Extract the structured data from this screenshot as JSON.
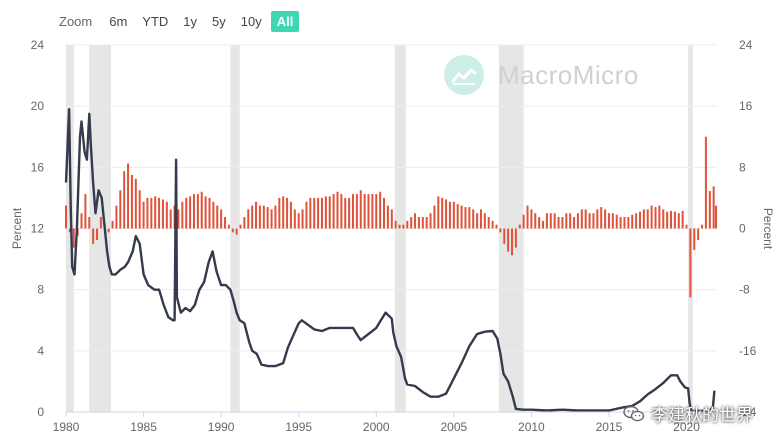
{
  "zoom": {
    "label": "Zoom",
    "buttons": [
      "6m",
      "YTD",
      "1y",
      "5y",
      "10y",
      "All"
    ],
    "active": "All"
  },
  "watermark": {
    "brand": "MacroMicro",
    "icon": "line-chart-icon"
  },
  "credit": {
    "text": "李建秋的世界",
    "icon": "wechat-icon"
  },
  "colors": {
    "rate_line": "#353a4d",
    "bars": "#e0533a",
    "recession": "#e6e6e6",
    "accent": "#3fd6b2"
  },
  "chart_data": {
    "type": "line+bar",
    "x_range": [
      1980,
      2021.9
    ],
    "x_ticks": [
      1980,
      1985,
      1990,
      1995,
      2000,
      2005,
      2010,
      2015,
      2020
    ],
    "left_axis": {
      "label": "Percent",
      "range": [
        0,
        24
      ],
      "ticks": [
        0,
        4,
        8,
        12,
        16,
        20,
        24
      ]
    },
    "right_axis": {
      "label": "Percent",
      "range": [
        -24,
        24
      ],
      "ticks": [
        -24,
        -16,
        -8,
        0,
        8,
        16,
        24
      ]
    },
    "recessions": [
      [
        1980.0,
        1980.5
      ],
      [
        1981.5,
        1982.9
      ],
      [
        1990.6,
        1991.2
      ],
      [
        2001.2,
        2001.9
      ],
      [
        2007.9,
        2009.5
      ],
      [
        2020.1,
        2020.4
      ]
    ],
    "series": [
      {
        "axis": "left",
        "kind": "line",
        "points": [
          [
            1980.0,
            15.0
          ],
          [
            1980.1,
            17.5
          ],
          [
            1980.2,
            19.8
          ],
          [
            1980.3,
            13.5
          ],
          [
            1980.4,
            9.5
          ],
          [
            1980.55,
            9.0
          ],
          [
            1980.7,
            12.0
          ],
          [
            1980.9,
            18.0
          ],
          [
            1981.0,
            19.0
          ],
          [
            1981.2,
            17.0
          ],
          [
            1981.35,
            16.5
          ],
          [
            1981.5,
            19.5
          ],
          [
            1981.6,
            17.5
          ],
          [
            1981.75,
            15.0
          ],
          [
            1981.9,
            13.0
          ],
          [
            1982.1,
            14.5
          ],
          [
            1982.3,
            14.0
          ],
          [
            1982.5,
            12.0
          ],
          [
            1982.65,
            10.5
          ],
          [
            1982.8,
            9.5
          ],
          [
            1982.95,
            9.0
          ],
          [
            1983.2,
            9.0
          ],
          [
            1983.5,
            9.3
          ],
          [
            1983.8,
            9.5
          ],
          [
            1984.0,
            9.8
          ],
          [
            1984.3,
            10.5
          ],
          [
            1984.5,
            11.5
          ],
          [
            1984.75,
            11.0
          ],
          [
            1985.0,
            9.0
          ],
          [
            1985.3,
            8.3
          ],
          [
            1985.7,
            8.0
          ],
          [
            1986.0,
            8.0
          ],
          [
            1986.3,
            7.0
          ],
          [
            1986.6,
            6.2
          ],
          [
            1986.9,
            6.0
          ],
          [
            1987.0,
            6.0
          ],
          [
            1987.1,
            16.5
          ],
          [
            1987.15,
            7.5
          ],
          [
            1987.4,
            6.5
          ],
          [
            1987.7,
            6.8
          ],
          [
            1988.0,
            6.6
          ],
          [
            1988.3,
            7.0
          ],
          [
            1988.6,
            8.0
          ],
          [
            1988.9,
            8.5
          ],
          [
            1989.2,
            9.8
          ],
          [
            1989.45,
            10.5
          ],
          [
            1989.7,
            9.2
          ],
          [
            1990.0,
            8.3
          ],
          [
            1990.3,
            8.3
          ],
          [
            1990.6,
            8.0
          ],
          [
            1990.8,
            7.3
          ],
          [
            1991.0,
            6.5
          ],
          [
            1991.2,
            6.0
          ],
          [
            1991.5,
            5.8
          ],
          [
            1991.8,
            4.6
          ],
          [
            1992.0,
            4.0
          ],
          [
            1992.3,
            3.8
          ],
          [
            1992.6,
            3.1
          ],
          [
            1993.0,
            3.0
          ],
          [
            1993.5,
            3.0
          ],
          [
            1994.0,
            3.2
          ],
          [
            1994.3,
            4.2
          ],
          [
            1994.6,
            4.9
          ],
          [
            1995.0,
            5.8
          ],
          [
            1995.2,
            6.0
          ],
          [
            1995.6,
            5.7
          ],
          [
            1996.0,
            5.4
          ],
          [
            1996.5,
            5.3
          ],
          [
            1997.0,
            5.5
          ],
          [
            1997.5,
            5.5
          ],
          [
            1998.0,
            5.5
          ],
          [
            1998.5,
            5.5
          ],
          [
            1998.8,
            5.0
          ],
          [
            1999.0,
            4.7
          ],
          [
            1999.5,
            5.1
          ],
          [
            2000.0,
            5.5
          ],
          [
            2000.3,
            6.0
          ],
          [
            2000.6,
            6.5
          ],
          [
            2001.0,
            6.1
          ],
          [
            2001.1,
            5.2
          ],
          [
            2001.3,
            4.3
          ],
          [
            2001.6,
            3.6
          ],
          [
            2001.85,
            2.2
          ],
          [
            2002.0,
            1.8
          ],
          [
            2002.5,
            1.7
          ],
          [
            2003.0,
            1.3
          ],
          [
            2003.5,
            1.0
          ],
          [
            2004.0,
            1.0
          ],
          [
            2004.5,
            1.2
          ],
          [
            2004.9,
            2.0
          ],
          [
            2005.5,
            3.2
          ],
          [
            2006.0,
            4.3
          ],
          [
            2006.5,
            5.1
          ],
          [
            2007.0,
            5.25
          ],
          [
            2007.5,
            5.3
          ],
          [
            2007.8,
            4.8
          ],
          [
            2008.0,
            3.8
          ],
          [
            2008.2,
            2.5
          ],
          [
            2008.5,
            2.0
          ],
          [
            2008.8,
            1.0
          ],
          [
            2009.0,
            0.2
          ],
          [
            2009.5,
            0.15
          ],
          [
            2010.0,
            0.15
          ],
          [
            2011.0,
            0.1
          ],
          [
            2012.0,
            0.15
          ],
          [
            2013.0,
            0.1
          ],
          [
            2014.0,
            0.1
          ],
          [
            2015.0,
            0.1
          ],
          [
            2015.9,
            0.3
          ],
          [
            2016.5,
            0.4
          ],
          [
            2017.0,
            0.7
          ],
          [
            2017.5,
            1.15
          ],
          [
            2018.0,
            1.5
          ],
          [
            2018.5,
            1.9
          ],
          [
            2019.0,
            2.4
          ],
          [
            2019.4,
            2.4
          ],
          [
            2019.6,
            2.0
          ],
          [
            2019.9,
            1.6
          ],
          [
            2020.1,
            1.55
          ],
          [
            2020.2,
            0.6
          ],
          [
            2020.3,
            0.06
          ],
          [
            2021.0,
            0.08
          ],
          [
            2021.5,
            0.08
          ],
          [
            2021.7,
            0.3
          ],
          [
            2021.8,
            1.4
          ]
        ]
      },
      {
        "axis": "right",
        "kind": "bar",
        "points": [
          [
            1980.0,
            3.0
          ],
          [
            1980.25,
            -0.5
          ],
          [
            1980.5,
            -2.5
          ],
          [
            1980.75,
            -1.0
          ],
          [
            1981.0,
            2.0
          ],
          [
            1981.25,
            4.5
          ],
          [
            1981.5,
            1.5
          ],
          [
            1981.75,
            -2.0
          ],
          [
            1982.0,
            -1.5
          ],
          [
            1982.25,
            1.5
          ],
          [
            1982.5,
            0.5
          ],
          [
            1982.75,
            -0.5
          ],
          [
            1983.0,
            1.0
          ],
          [
            1983.25,
            3.0
          ],
          [
            1983.5,
            5.0
          ],
          [
            1983.75,
            7.5
          ],
          [
            1984.0,
            8.5
          ],
          [
            1984.25,
            7.0
          ],
          [
            1984.5,
            6.5
          ],
          [
            1984.75,
            5.0
          ],
          [
            1985.0,
            3.5
          ],
          [
            1985.25,
            4.0
          ],
          [
            1985.5,
            4.0
          ],
          [
            1985.75,
            4.2
          ],
          [
            1986.0,
            4.0
          ],
          [
            1986.25,
            3.8
          ],
          [
            1986.5,
            3.5
          ],
          [
            1986.75,
            2.5
          ],
          [
            1987.0,
            3.0
          ],
          [
            1987.25,
            2.5
          ],
          [
            1987.5,
            3.5
          ],
          [
            1987.75,
            4.0
          ],
          [
            1988.0,
            4.2
          ],
          [
            1988.25,
            4.5
          ],
          [
            1988.5,
            4.5
          ],
          [
            1988.75,
            4.8
          ],
          [
            1989.0,
            4.2
          ],
          [
            1989.25,
            4.0
          ],
          [
            1989.5,
            3.5
          ],
          [
            1989.75,
            3.0
          ],
          [
            1990.0,
            2.5
          ],
          [
            1990.25,
            1.5
          ],
          [
            1990.5,
            0.5
          ],
          [
            1990.75,
            -0.5
          ],
          [
            1991.0,
            -0.8
          ],
          [
            1991.25,
            0.5
          ],
          [
            1991.5,
            1.5
          ],
          [
            1991.75,
            2.5
          ],
          [
            1992.0,
            3.0
          ],
          [
            1992.25,
            3.5
          ],
          [
            1992.5,
            3.0
          ],
          [
            1992.75,
            3.0
          ],
          [
            1993.0,
            2.8
          ],
          [
            1993.25,
            2.5
          ],
          [
            1993.5,
            3.0
          ],
          [
            1993.75,
            4.0
          ],
          [
            1994.0,
            4.2
          ],
          [
            1994.25,
            4.0
          ],
          [
            1994.5,
            3.5
          ],
          [
            1994.75,
            2.5
          ],
          [
            1995.0,
            2.0
          ],
          [
            1995.25,
            2.5
          ],
          [
            1995.5,
            3.5
          ],
          [
            1995.75,
            4.0
          ],
          [
            1996.0,
            4.0
          ],
          [
            1996.25,
            4.0
          ],
          [
            1996.5,
            4.0
          ],
          [
            1996.75,
            4.2
          ],
          [
            1997.0,
            4.2
          ],
          [
            1997.25,
            4.5
          ],
          [
            1997.5,
            4.8
          ],
          [
            1997.75,
            4.5
          ],
          [
            1998.0,
            4.0
          ],
          [
            1998.25,
            4.0
          ],
          [
            1998.5,
            4.5
          ],
          [
            1998.75,
            4.5
          ],
          [
            1999.0,
            5.0
          ],
          [
            1999.25,
            4.5
          ],
          [
            1999.5,
            4.5
          ],
          [
            1999.75,
            4.5
          ],
          [
            2000.0,
            4.5
          ],
          [
            2000.25,
            4.8
          ],
          [
            2000.5,
            4.0
          ],
          [
            2000.75,
            3.0
          ],
          [
            2001.0,
            2.5
          ],
          [
            2001.25,
            1.0
          ],
          [
            2001.5,
            0.5
          ],
          [
            2001.75,
            0.5
          ],
          [
            2002.0,
            1.0
          ],
          [
            2002.25,
            1.5
          ],
          [
            2002.5,
            2.0
          ],
          [
            2002.75,
            1.5
          ],
          [
            2003.0,
            1.5
          ],
          [
            2003.25,
            1.5
          ],
          [
            2003.5,
            2.0
          ],
          [
            2003.75,
            3.0
          ],
          [
            2004.0,
            4.2
          ],
          [
            2004.25,
            4.0
          ],
          [
            2004.5,
            3.8
          ],
          [
            2004.75,
            3.5
          ],
          [
            2005.0,
            3.5
          ],
          [
            2005.25,
            3.2
          ],
          [
            2005.5,
            3.0
          ],
          [
            2005.75,
            2.8
          ],
          [
            2006.0,
            2.8
          ],
          [
            2006.25,
            2.5
          ],
          [
            2006.5,
            2.0
          ],
          [
            2006.75,
            2.5
          ],
          [
            2007.0,
            2.0
          ],
          [
            2007.25,
            1.5
          ],
          [
            2007.5,
            1.0
          ],
          [
            2007.75,
            0.5
          ],
          [
            2008.0,
            -0.5
          ],
          [
            2008.25,
            -2.0
          ],
          [
            2008.5,
            -3.0
          ],
          [
            2008.75,
            -3.5
          ],
          [
            2009.0,
            -2.5
          ],
          [
            2009.25,
            0.5
          ],
          [
            2009.5,
            1.8
          ],
          [
            2009.75,
            3.0
          ],
          [
            2010.0,
            2.5
          ],
          [
            2010.25,
            2.0
          ],
          [
            2010.5,
            1.5
          ],
          [
            2010.75,
            1.0
          ],
          [
            2011.0,
            2.0
          ],
          [
            2011.25,
            2.0
          ],
          [
            2011.5,
            2.0
          ],
          [
            2011.75,
            1.5
          ],
          [
            2012.0,
            1.5
          ],
          [
            2012.25,
            2.0
          ],
          [
            2012.5,
            2.0
          ],
          [
            2012.75,
            1.5
          ],
          [
            2013.0,
            2.0
          ],
          [
            2013.25,
            2.5
          ],
          [
            2013.5,
            2.5
          ],
          [
            2013.75,
            2.0
          ],
          [
            2014.0,
            2.0
          ],
          [
            2014.25,
            2.5
          ],
          [
            2014.5,
            2.8
          ],
          [
            2014.75,
            2.5
          ],
          [
            2015.0,
            2.0
          ],
          [
            2015.25,
            2.0
          ],
          [
            2015.5,
            1.8
          ],
          [
            2015.75,
            1.5
          ],
          [
            2016.0,
            1.5
          ],
          [
            2016.25,
            1.5
          ],
          [
            2016.5,
            1.8
          ],
          [
            2016.75,
            2.0
          ],
          [
            2017.0,
            2.2
          ],
          [
            2017.25,
            2.5
          ],
          [
            2017.5,
            2.5
          ],
          [
            2017.75,
            3.0
          ],
          [
            2018.0,
            2.8
          ],
          [
            2018.25,
            3.0
          ],
          [
            2018.5,
            2.5
          ],
          [
            2018.75,
            2.2
          ],
          [
            2019.0,
            2.3
          ],
          [
            2019.25,
            2.2
          ],
          [
            2019.5,
            2.0
          ],
          [
            2019.75,
            2.3
          ],
          [
            2020.0,
            0.5
          ],
          [
            2020.25,
            -9.0
          ],
          [
            2020.5,
            -2.8
          ],
          [
            2020.75,
            -1.5
          ],
          [
            2021.0,
            0.5
          ],
          [
            2021.25,
            12.0
          ],
          [
            2021.5,
            4.9
          ],
          [
            2021.75,
            5.5
          ],
          [
            2021.9,
            3.0
          ]
        ]
      }
    ]
  }
}
